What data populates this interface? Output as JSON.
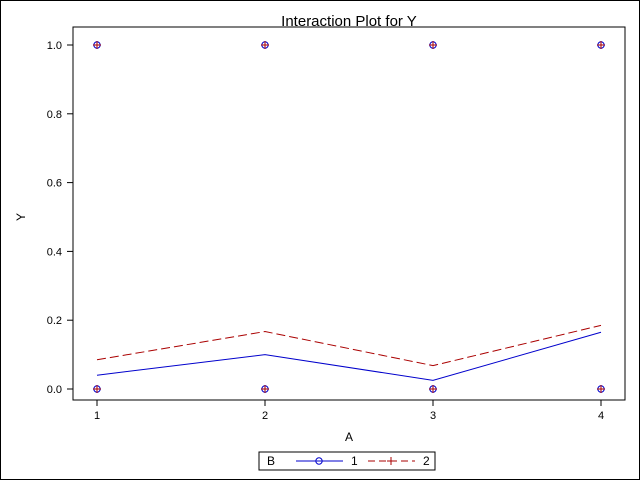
{
  "chart_data": {
    "type": "line",
    "title": "Interaction Plot for Y",
    "xlabel": "A",
    "ylabel": "Y",
    "x": [
      1,
      2,
      3,
      4
    ],
    "xticks": [
      "1",
      "2",
      "3",
      "4"
    ],
    "yticks": [
      "0.0",
      "0.2",
      "0.4",
      "0.6",
      "0.8",
      "1.0"
    ],
    "xlim": [
      1,
      4
    ],
    "ylim": [
      0,
      1
    ],
    "grid": false,
    "legend": {
      "title": "B",
      "placement": "bottom-center",
      "entries": [
        "1",
        "2"
      ]
    },
    "series": [
      {
        "name": "1",
        "values": [
          0.04,
          0.1,
          0.025,
          0.165
        ],
        "color": "#0000cc",
        "dash": "solid",
        "marker": "circle"
      },
      {
        "name": "2",
        "values": [
          0.085,
          0.167,
          0.068,
          0.185
        ],
        "color": "#aa0000",
        "dash": "dashed",
        "marker": "plus"
      }
    ],
    "observations": [
      {
        "x": 1,
        "y": 0
      },
      {
        "x": 1,
        "y": 1
      },
      {
        "x": 2,
        "y": 0
      },
      {
        "x": 2,
        "y": 1
      },
      {
        "x": 3,
        "y": 0
      },
      {
        "x": 3,
        "y": 1
      },
      {
        "x": 4,
        "y": 0
      },
      {
        "x": 4,
        "y": 1
      }
    ]
  }
}
